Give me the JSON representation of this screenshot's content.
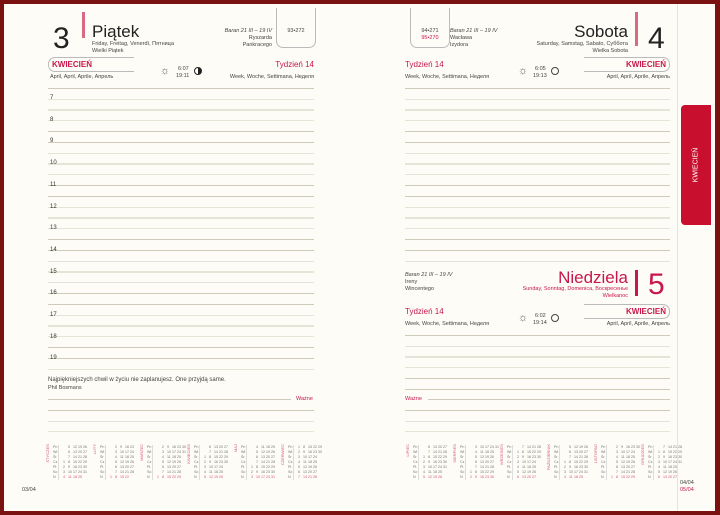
{
  "left": {
    "day_number": "3",
    "day_name": "Piątek",
    "translations": "Friday, Freitag, Venerdì, Пятница",
    "holiday": "Wielki Piątek",
    "zodiac": "Baran 21 III – 19 IV",
    "namedays": [
      "Ryszarda",
      "Pankracego"
    ],
    "day_count": "93•272",
    "month": "KWIECIEŃ",
    "month_translations": "April, April, Aprile, Апрель",
    "sunrise": "6:07",
    "sunset": "19:11",
    "week": "Tydzień 14",
    "week_translations": "Week, Woche, Settimana, Неделя",
    "hours": [
      "7",
      "8",
      "9",
      "10",
      "11",
      "12",
      "13",
      "14",
      "15",
      "16",
      "17",
      "18",
      "19"
    ],
    "quote": "Najpiękniejszych chwil w życiu nie zaplanujesz. One przyjdą same.",
    "quote_author": "Phil Bosmans",
    "important": "Ważne",
    "page_date": "03/04"
  },
  "right": {
    "saturday": {
      "day_number": "4",
      "day_name": "Sobota",
      "translations": "Saturday, Samstag, Sabato, Суббота",
      "holiday": "Wielka Sobota",
      "zodiac": "Baran 21 III – 19 IV",
      "namedays": [
        "Wacława",
        "Izydora"
      ],
      "day_count": "94•271",
      "day_count_2": "95•270",
      "month": "KWIECIEŃ",
      "month_translations": "April, April, Aprile, Апрель",
      "sunrise": "6:05",
      "sunset": "19:13",
      "week": "Tydzień 14",
      "week_translations": "Week, Woche, Settimana, Неделя"
    },
    "sunday": {
      "day_number": "5",
      "day_name": "Niedziela",
      "translations": "Sunday, Sonntag, Domenica, Воскресенье",
      "holiday": "Wielkanoc",
      "zodiac": "Baran 21 III – 19 IV",
      "namedays": [
        "Ireny",
        "Wincentego"
      ],
      "month": "KWIECIEŃ",
      "month_translations": "April, April, Aprile, Апрель",
      "sunrise": "6:02",
      "sunset": "19:14",
      "week": "Tydzień 14",
      "week_translations": "Week, Woche, Settimana, Неделя"
    },
    "important": "Ważne",
    "page_date_1": "04/04",
    "page_date_2": "05/04"
  },
  "tab": {
    "label": "KWIECIEŃ",
    "color": "#c8102e"
  },
  "calendars": {
    "weekdays": [
      "Pn",
      "Wt",
      "Śr",
      "Cz",
      "Pt",
      "So",
      "N"
    ],
    "months": [
      "STYCZEŃ",
      "LUTY",
      "MARZEC",
      "KWIECIEŃ",
      "MAJ",
      "CZERWIEC",
      "LIPIEC",
      "SIERPIEŃ",
      "WRZESIEŃ",
      "PAŹDZIERNIK",
      "LISTOPAD",
      "GRUDZIEŃ"
    ]
  }
}
